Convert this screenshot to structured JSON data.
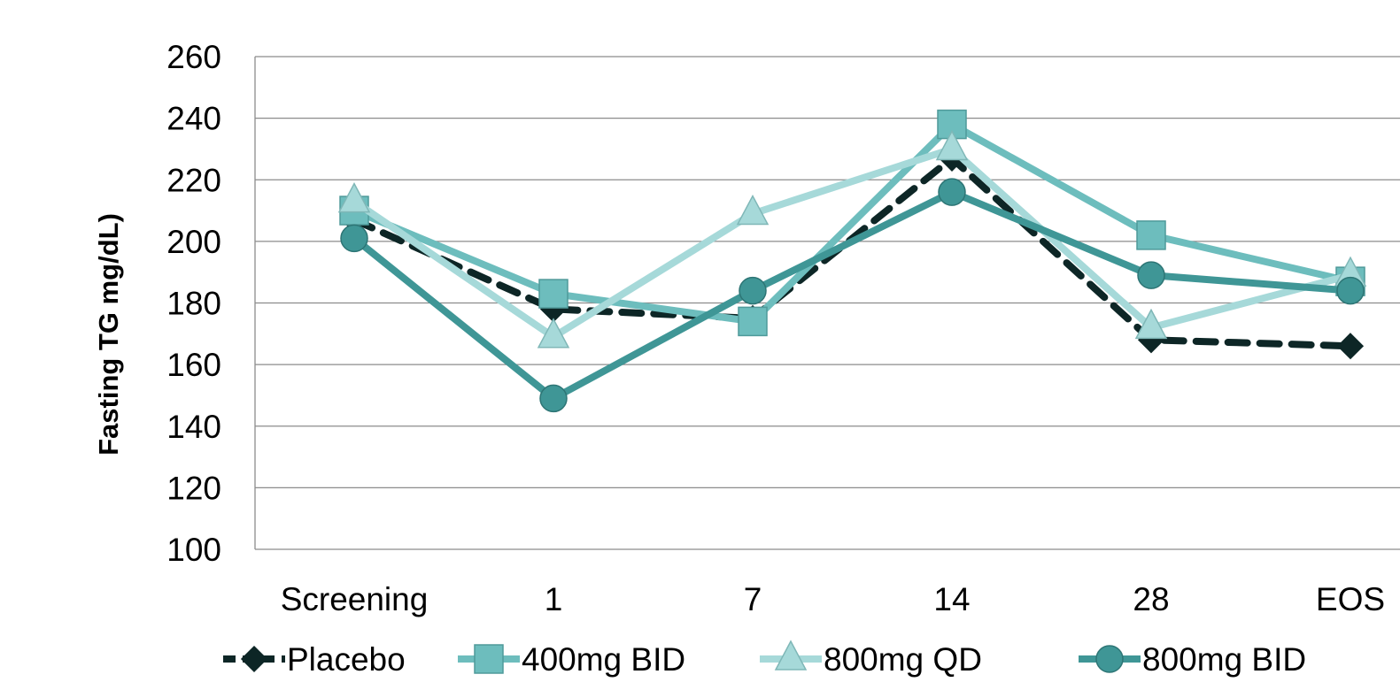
{
  "chart_data": {
    "type": "line",
    "title": "",
    "xlabel": "",
    "ylabel": "Fasting TG mg/dL)",
    "ylim": [
      100,
      260
    ],
    "ytick_step": 20,
    "grid": true,
    "legend_position": "bottom",
    "categories": [
      "Screening",
      "1",
      "7",
      "14",
      "28",
      "EOS"
    ],
    "series": [
      {
        "name": "Placebo",
        "values": [
          207,
          178,
          175,
          227,
          168,
          166
        ],
        "color": "#0d2626",
        "marker": "diamond",
        "dashed": true
      },
      {
        "name": "400mg BID",
        "values": [
          210,
          183,
          174,
          238,
          202,
          187
        ],
        "color": "#6dbdbd",
        "marker": "square",
        "dashed": false
      },
      {
        "name": "800mg QD",
        "values": [
          213,
          169,
          209,
          230,
          172,
          189
        ],
        "color": "#a6d9d9",
        "marker": "triangle",
        "dashed": false
      },
      {
        "name": "800mg BID",
        "values": [
          201,
          149,
          184,
          216,
          189,
          184
        ],
        "color": "#3f9696",
        "marker": "circle",
        "dashed": false
      }
    ]
  }
}
